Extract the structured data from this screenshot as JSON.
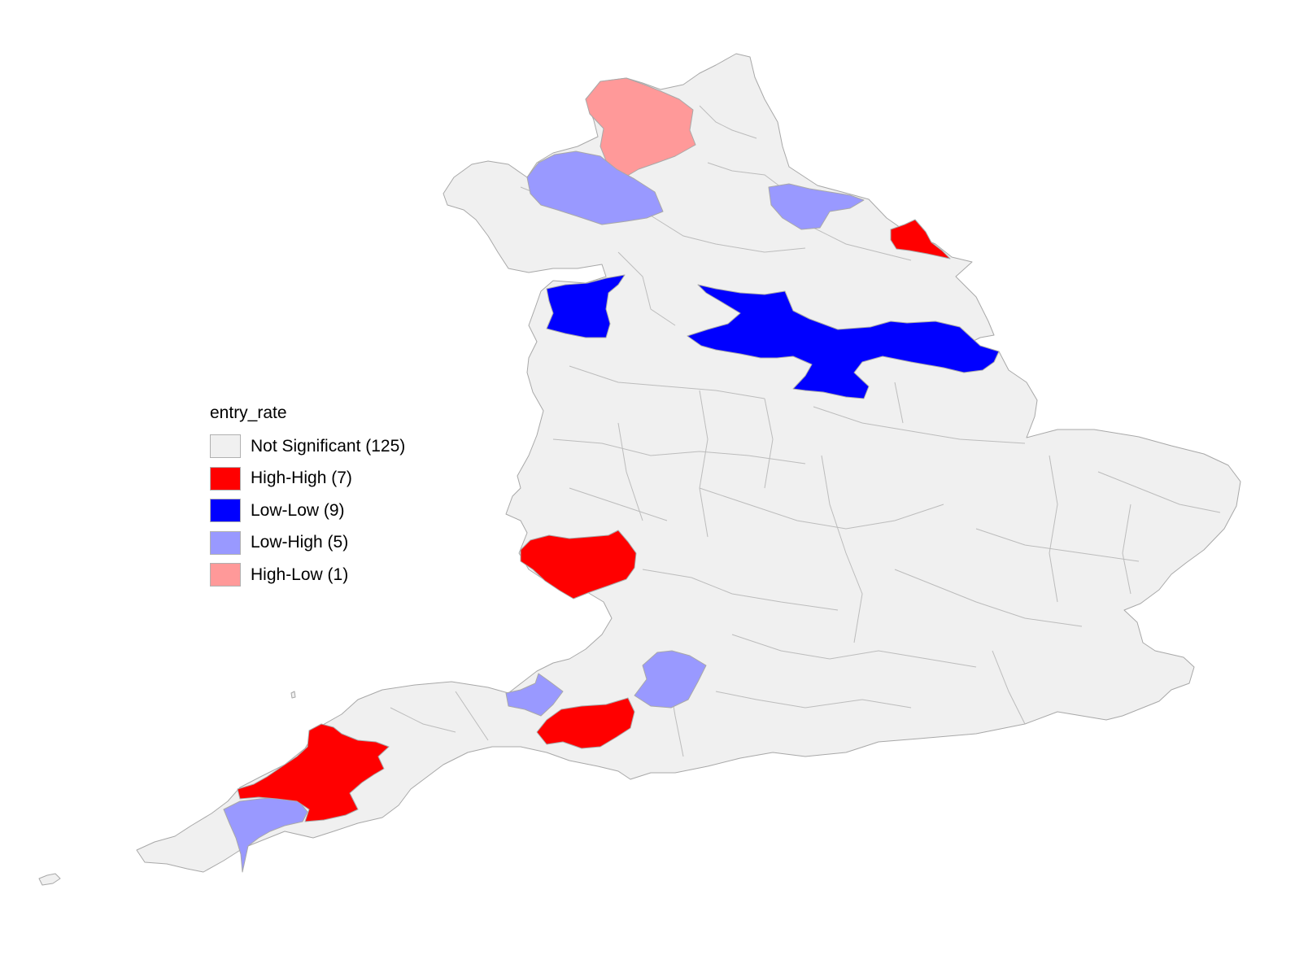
{
  "legend": {
    "title": "entry_rate",
    "items": [
      {
        "key": "ns",
        "label": "Not Significant (125)",
        "color": "#f0f0f0"
      },
      {
        "key": "hh",
        "label": "High-High (7)",
        "color": "#ff0000"
      },
      {
        "key": "ll",
        "label": "Low-Low (9)",
        "color": "#0000ff"
      },
      {
        "key": "lh",
        "label": "Low-High (5)",
        "color": "#9999ff"
      },
      {
        "key": "hl",
        "label": "High-Low (1)",
        "color": "#ff9999"
      }
    ]
  },
  "chart_data": {
    "type": "choropleth",
    "variable": "entry_rate",
    "categories": [
      "Not Significant",
      "High-High",
      "Low-Low",
      "Low-High",
      "High-Low"
    ],
    "counts": [
      125,
      7,
      9,
      5,
      1
    ],
    "colors": [
      "#f0f0f0",
      "#ff0000",
      "#0000ff",
      "#9999ff",
      "#ff9999"
    ],
    "legend_position": "left"
  }
}
